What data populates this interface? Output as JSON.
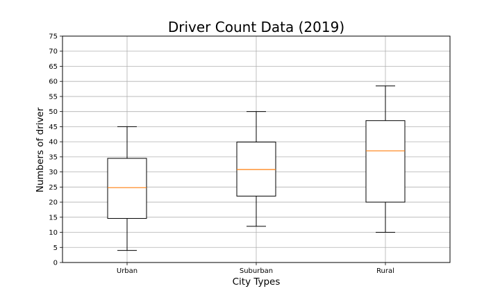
{
  "chart_data": {
    "type": "box",
    "title": "Driver Count Data (2019)",
    "xlabel": "City Types",
    "ylabel": "Numbers of driver",
    "categories": [
      "Urban",
      "Suburban",
      "Rural"
    ],
    "boxes": [
      {
        "category": "Urban",
        "whislo": 4,
        "q1": 14.6,
        "med": 24.8,
        "q3": 34.5,
        "whishi": 45
      },
      {
        "category": "Suburban",
        "whislo": 12,
        "q1": 22,
        "med": 30.8,
        "q3": 39.9,
        "whishi": 50
      },
      {
        "category": "Rural",
        "whislo": 10,
        "q1": 20,
        "med": 37,
        "q3": 47,
        "whishi": 58.5
      }
    ],
    "ylim": [
      0,
      75
    ],
    "yticks": [
      0,
      5,
      10,
      15,
      20,
      25,
      30,
      35,
      40,
      45,
      50,
      55,
      60,
      65,
      70,
      75
    ],
    "grid": true,
    "colors": {
      "box": "#000000",
      "median": "#ff7f0e",
      "grid": "#b0b0b0"
    }
  }
}
